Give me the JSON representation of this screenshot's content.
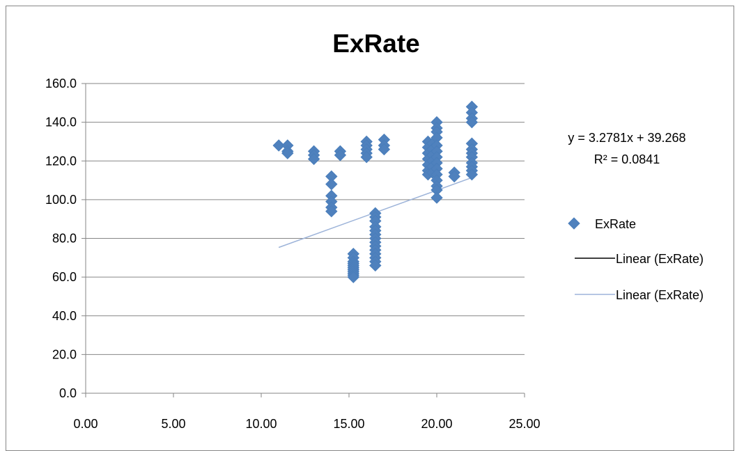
{
  "chart_data": {
    "type": "scatter",
    "title": "ExRate",
    "xlabel": "",
    "ylabel": "",
    "xlim": [
      0,
      25
    ],
    "ylim": [
      0,
      160
    ],
    "x_ticks": [
      "0.00",
      "5.00",
      "10.00",
      "15.00",
      "20.00",
      "25.00"
    ],
    "y_ticks": [
      "0.0",
      "20.0",
      "40.0",
      "60.0",
      "80.0",
      "100.0",
      "120.0",
      "140.0",
      "160.0"
    ],
    "grid": "horizontal",
    "legend_position": "right",
    "colors": {
      "markers": "#4F81BD",
      "trendline_1": "#000000",
      "trendline_2": "#9DB4DA",
      "gridlines": "#868686"
    },
    "series": [
      {
        "name": "ExRate",
        "marker": "diamond",
        "points": [
          [
            11.0,
            128
          ],
          [
            11.5,
            128
          ],
          [
            11.5,
            125
          ],
          [
            11.5,
            124
          ],
          [
            13.0,
            125
          ],
          [
            13.0,
            123
          ],
          [
            13.0,
            121
          ],
          [
            14.0,
            112
          ],
          [
            14.0,
            108
          ],
          [
            14.0,
            102
          ],
          [
            14.0,
            99
          ],
          [
            14.0,
            96
          ],
          [
            14.0,
            94
          ],
          [
            14.5,
            125
          ],
          [
            14.5,
            123
          ],
          [
            15.25,
            72
          ],
          [
            15.25,
            70
          ],
          [
            15.25,
            68
          ],
          [
            15.25,
            67
          ],
          [
            15.25,
            66
          ],
          [
            15.25,
            65
          ],
          [
            15.25,
            64
          ],
          [
            15.25,
            63
          ],
          [
            15.25,
            62
          ],
          [
            15.25,
            61
          ],
          [
            15.25,
            60
          ],
          [
            16.0,
            130
          ],
          [
            16.0,
            128
          ],
          [
            16.0,
            126
          ],
          [
            16.0,
            124
          ],
          [
            16.0,
            122
          ],
          [
            16.5,
            93
          ],
          [
            16.5,
            91
          ],
          [
            16.5,
            89
          ],
          [
            16.5,
            86
          ],
          [
            16.5,
            84
          ],
          [
            16.5,
            82
          ],
          [
            16.5,
            80
          ],
          [
            16.5,
            78
          ],
          [
            16.5,
            76
          ],
          [
            16.5,
            74
          ],
          [
            16.5,
            72
          ],
          [
            16.5,
            70
          ],
          [
            16.5,
            68
          ],
          [
            16.5,
            66
          ],
          [
            17.0,
            131
          ],
          [
            17.0,
            128
          ],
          [
            17.0,
            126
          ],
          [
            19.5,
            130
          ],
          [
            19.5,
            127
          ],
          [
            19.5,
            124
          ],
          [
            19.5,
            121
          ],
          [
            19.5,
            118
          ],
          [
            19.5,
            115
          ],
          [
            19.5,
            113
          ],
          [
            19.75,
            129
          ],
          [
            19.75,
            126
          ],
          [
            19.75,
            123
          ],
          [
            19.75,
            120
          ],
          [
            19.75,
            117
          ],
          [
            19.75,
            114
          ],
          [
            20.0,
            140
          ],
          [
            20.0,
            137
          ],
          [
            20.0,
            135
          ],
          [
            20.0,
            132
          ],
          [
            20.0,
            128
          ],
          [
            20.0,
            125
          ],
          [
            20.0,
            122
          ],
          [
            20.0,
            119
          ],
          [
            20.0,
            116
          ],
          [
            20.0,
            113
          ],
          [
            20.0,
            110
          ],
          [
            20.0,
            107
          ],
          [
            20.0,
            105
          ],
          [
            20.0,
            101
          ],
          [
            21.0,
            114
          ],
          [
            21.0,
            112
          ],
          [
            22.0,
            148
          ],
          [
            22.0,
            145
          ],
          [
            22.0,
            142
          ],
          [
            22.0,
            140
          ],
          [
            22.0,
            129
          ],
          [
            22.0,
            126
          ],
          [
            22.0,
            124
          ],
          [
            22.0,
            122
          ],
          [
            22.0,
            119
          ],
          [
            22.0,
            117
          ],
          [
            22.0,
            115
          ],
          [
            22.0,
            113
          ]
        ]
      },
      {
        "name": "Linear (ExRate)",
        "type": "trendline",
        "slope": 3.2781,
        "intercept": 39.268,
        "x_range": [
          11.0,
          22.0
        ]
      },
      {
        "name": "Linear (ExRate)",
        "type": "trendline",
        "slope": 3.2781,
        "intercept": 39.268,
        "x_range": [
          11.0,
          22.0
        ]
      }
    ],
    "annotations": {
      "equation": "y = 3.2781x + 39.268",
      "r_squared": "R² = 0.0841"
    }
  }
}
